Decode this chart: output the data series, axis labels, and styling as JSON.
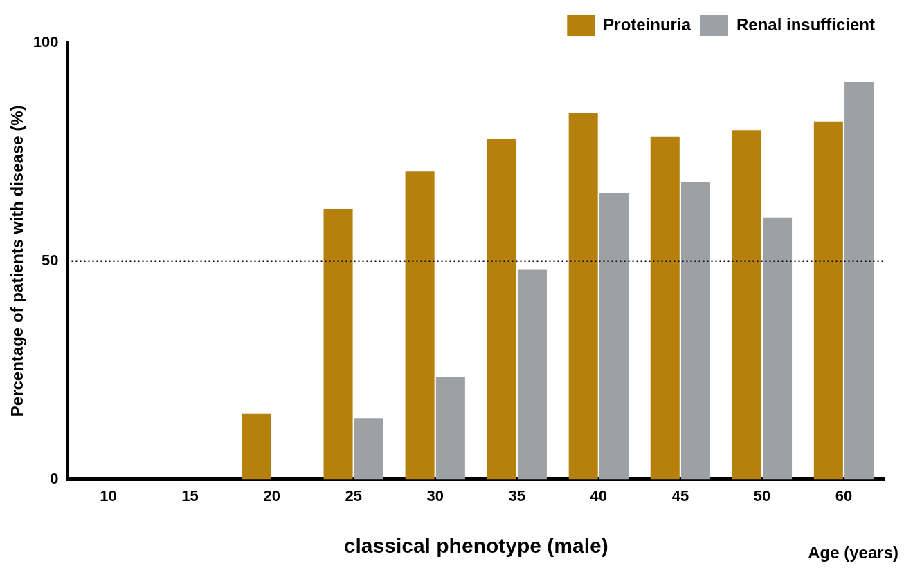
{
  "chart_data": {
    "type": "bar",
    "categories": [
      "10",
      "15",
      "20",
      "25",
      "30",
      "35",
      "40",
      "45",
      "50",
      "60"
    ],
    "series": [
      {
        "name": "Proteinuria",
        "color": "#b5800c",
        "values": [
          0,
          0,
          15,
          62,
          70.5,
          78,
          84,
          78.5,
          80,
          82
        ]
      },
      {
        "name": "Renal insufficient",
        "color": "#9ea1a4",
        "values": [
          0,
          0,
          0,
          14,
          23.5,
          48,
          65.5,
          68,
          60,
          91
        ]
      }
    ],
    "ylim": [
      0,
      100
    ],
    "yticks": [
      0,
      50,
      100
    ],
    "ylabel": "Percentage of patients with disease (%)",
    "xlabel": "classical phenotype (male)",
    "annotations": [
      "Age (years)"
    ],
    "ref_lines": [
      {
        "axis": "y",
        "value": 50,
        "line_style": "dotted",
        "color": "#000000"
      }
    ],
    "grid": false,
    "legend": "top right"
  }
}
